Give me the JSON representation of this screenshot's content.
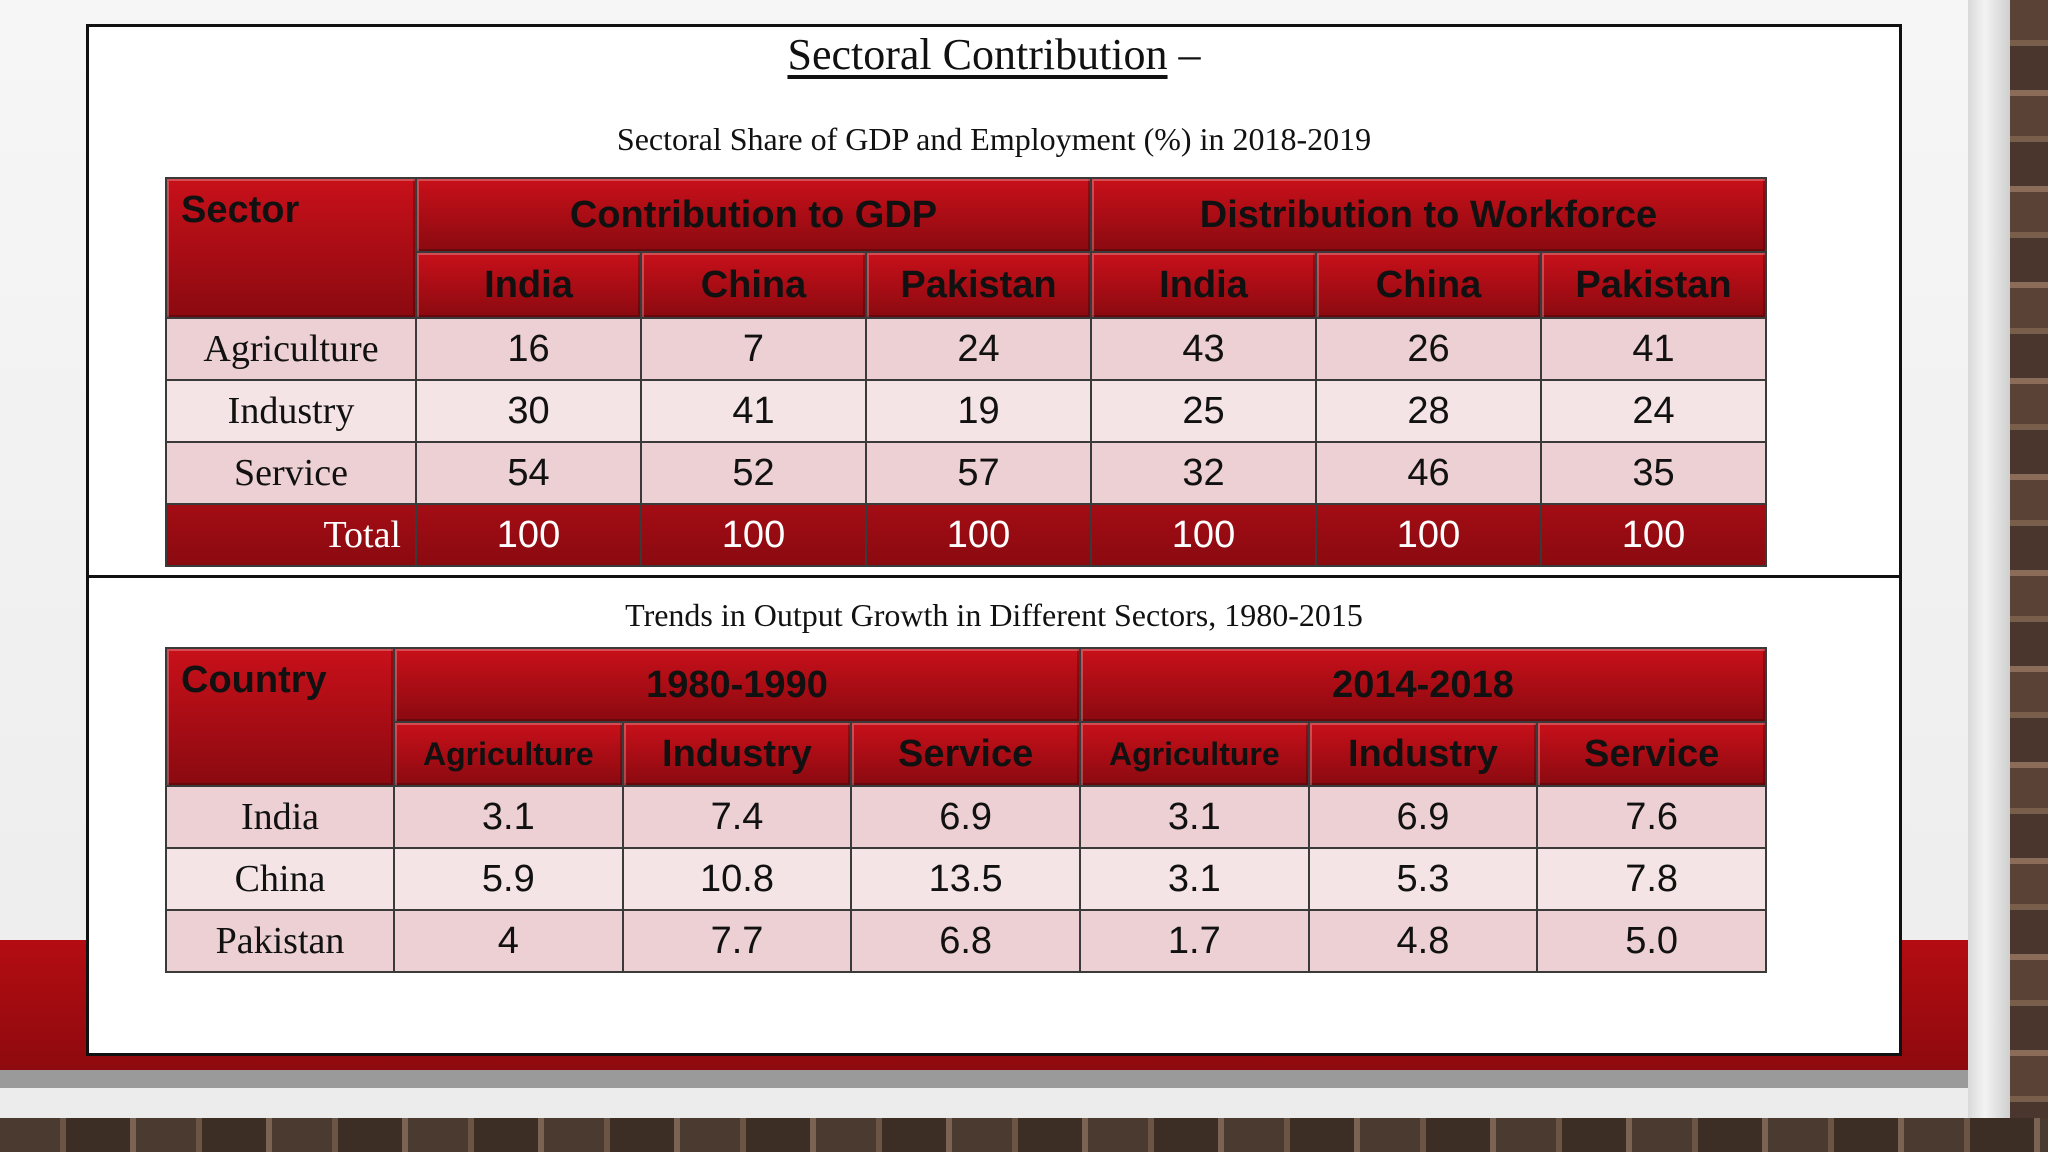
{
  "slide": {
    "title": "Sectoral Contribution",
    "title_suffix": " –",
    "accent_color": "#a40c14"
  },
  "table1": {
    "caption": "Sectoral Share of GDP and Employment (%) in 2018-2019",
    "corner_header": "Sector",
    "group_headers": [
      "Contribution to GDP",
      "Distribution to Workforce"
    ],
    "sub_headers": [
      "India",
      "China",
      "Pakistan",
      "India",
      "China",
      "Pakistan"
    ],
    "rows": [
      {
        "label": "Agriculture",
        "values": [
          "16",
          "7",
          "24",
          "43",
          "26",
          "41"
        ]
      },
      {
        "label": "Industry",
        "values": [
          "30",
          "41",
          "19",
          "25",
          "28",
          "24"
        ]
      },
      {
        "label": "Service",
        "values": [
          "54",
          "52",
          "57",
          "32",
          "46",
          "35"
        ]
      }
    ],
    "total": {
      "label": "Total",
      "values": [
        "100",
        "100",
        "100",
        "100",
        "100",
        "100"
      ]
    }
  },
  "table2": {
    "caption": "Trends in Output Growth in Different Sectors, 1980-2015",
    "corner_header": "Country",
    "group_headers": [
      "1980-1990",
      "2014-2018"
    ],
    "sub_headers": [
      "Agriculture",
      "Industry",
      "Service",
      "Agriculture",
      "Industry",
      "Service"
    ],
    "rows": [
      {
        "label": "India",
        "values": [
          "3.1",
          "7.4",
          "6.9",
          "3.1",
          "6.9",
          "7.6"
        ]
      },
      {
        "label": "China",
        "values": [
          "5.9",
          "10.8",
          "13.5",
          "3.1",
          "5.3",
          "7.8"
        ]
      },
      {
        "label": "Pakistan",
        "values": [
          "4",
          "7.7",
          "6.8",
          "1.7",
          "4.8",
          "5.0"
        ]
      }
    ]
  }
}
